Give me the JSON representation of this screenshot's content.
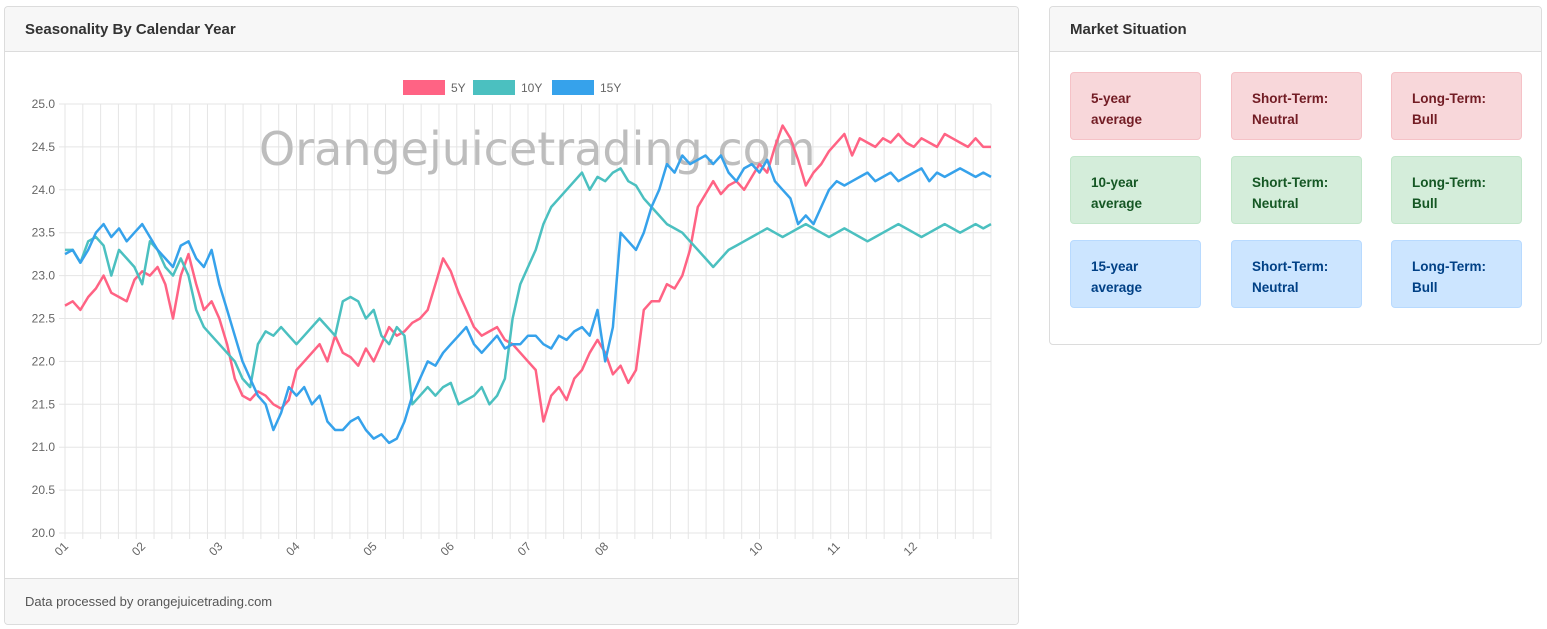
{
  "chart_panel": {
    "title": "Seasonality By Calendar Year",
    "footer": "Data processed by orangejuicetrading.com",
    "watermark": "Orangejuicetrading.com"
  },
  "market_panel": {
    "title": "Market Situation",
    "rows": [
      {
        "label": "5-year average",
        "short_term": "Short-Term: Neutral",
        "long_term": "Long-Term: Bull",
        "style": "red"
      },
      {
        "label": "10-year average",
        "short_term": "Short-Term: Neutral",
        "long_term": "Long-Term: Bull",
        "style": "green"
      },
      {
        "label": "15-year average",
        "short_term": "Short-Term: Neutral",
        "long_term": "Long-Term: Bull",
        "style": "blue"
      }
    ]
  },
  "colors": {
    "s5": "#ff6384",
    "s10": "#4bc0c0",
    "s15": "#36a2eb"
  },
  "chart_data": {
    "type": "line",
    "ylim": [
      20.0,
      25.0
    ],
    "y_ticks": [
      "25.0",
      "24.5",
      "24.0",
      "23.5",
      "23.0",
      "22.5",
      "22.0",
      "21.5",
      "21.0",
      "20.5",
      "20.0"
    ],
    "x_ticks": [
      {
        "label": "01",
        "x": 0
      },
      {
        "label": "02",
        "x": 1
      },
      {
        "label": "03",
        "x": 2
      },
      {
        "label": "04",
        "x": 3
      },
      {
        "label": "05",
        "x": 4
      },
      {
        "label": "06",
        "x": 5
      },
      {
        "label": "07",
        "x": 6
      },
      {
        "label": "08",
        "x": 7
      },
      {
        "label": "10",
        "x": 9
      },
      {
        "label": "11",
        "x": 10
      },
      {
        "label": "12",
        "x": 11
      }
    ],
    "x_range": [
      0,
      12
    ],
    "grid": true,
    "legend_position": "top",
    "series": [
      {
        "name": "5Y",
        "color": "#ff6384",
        "x": [
          0,
          0.1,
          0.2,
          0.3,
          0.4,
          0.5,
          0.6,
          0.7,
          0.8,
          0.9,
          1.0,
          1.1,
          1.2,
          1.3,
          1.4,
          1.5,
          1.6,
          1.7,
          1.8,
          1.9,
          2.0,
          2.1,
          2.2,
          2.3,
          2.4,
          2.5,
          2.6,
          2.7,
          2.8,
          2.9,
          3.0,
          3.1,
          3.2,
          3.3,
          3.4,
          3.5,
          3.6,
          3.7,
          3.8,
          3.9,
          4.0,
          4.1,
          4.2,
          4.3,
          4.4,
          4.5,
          4.6,
          4.7,
          4.8,
          4.9,
          5.0,
          5.1,
          5.2,
          5.3,
          5.4,
          5.5,
          5.6,
          5.7,
          5.8,
          5.9,
          6.0,
          6.1,
          6.2,
          6.3,
          6.4,
          6.5,
          6.6,
          6.7,
          6.8,
          6.9,
          7.0,
          7.1,
          7.2,
          7.3,
          7.4,
          7.5,
          7.6,
          7.7,
          7.8,
          7.9,
          8.0,
          8.1,
          8.2,
          8.3,
          8.4,
          8.5,
          8.6,
          8.7,
          8.8,
          8.9,
          9.0,
          9.1,
          9.2,
          9.3,
          9.4,
          9.5,
          9.6,
          9.7,
          9.8,
          9.9,
          10.0,
          10.1,
          10.2,
          10.3,
          10.4,
          10.5,
          10.6,
          10.7,
          10.8,
          10.9,
          11.0,
          11.1,
          11.2,
          11.3,
          11.4,
          11.5,
          11.6,
          11.7,
          11.8,
          11.9,
          12.0
        ],
        "y": [
          22.65,
          22.7,
          22.6,
          22.75,
          22.85,
          23.0,
          22.8,
          22.75,
          22.7,
          22.95,
          23.05,
          23.0,
          23.1,
          22.9,
          22.5,
          23.0,
          23.25,
          22.9,
          22.6,
          22.7,
          22.5,
          22.2,
          21.8,
          21.6,
          21.55,
          21.65,
          21.6,
          21.5,
          21.45,
          21.55,
          21.9,
          22.0,
          22.1,
          22.2,
          22.0,
          22.3,
          22.1,
          22.05,
          21.95,
          22.15,
          22.0,
          22.2,
          22.4,
          22.3,
          22.35,
          22.45,
          22.5,
          22.6,
          22.9,
          23.2,
          23.05,
          22.8,
          22.6,
          22.4,
          22.3,
          22.35,
          22.4,
          22.25,
          22.2,
          22.1,
          22.0,
          21.9,
          21.3,
          21.6,
          21.7,
          21.55,
          21.8,
          21.9,
          22.1,
          22.25,
          22.1,
          21.85,
          21.95,
          21.75,
          21.9,
          22.6,
          22.7,
          22.7,
          22.9,
          22.85,
          23.0,
          23.3,
          23.8,
          23.95,
          24.1,
          23.95,
          24.05,
          24.1,
          24.0,
          24.15,
          24.3,
          24.2,
          24.5,
          24.75,
          24.6,
          24.35,
          24.05,
          24.2,
          24.3,
          24.45,
          24.55,
          24.65,
          24.4,
          24.6,
          24.55,
          24.5,
          24.6,
          24.55,
          24.65,
          24.55,
          24.5,
          24.6,
          24.55,
          24.5,
          24.65,
          24.6,
          24.55,
          24.5,
          24.6,
          24.5,
          24.5
        ],
        "values_note": ""
      },
      {
        "name": "10Y",
        "color": "#4bc0c0",
        "x": [
          0,
          0.1,
          0.2,
          0.3,
          0.4,
          0.5,
          0.6,
          0.7,
          0.8,
          0.9,
          1.0,
          1.1,
          1.2,
          1.3,
          1.4,
          1.5,
          1.6,
          1.7,
          1.8,
          1.9,
          2.0,
          2.1,
          2.2,
          2.3,
          2.4,
          2.5,
          2.6,
          2.7,
          2.8,
          2.9,
          3.0,
          3.1,
          3.2,
          3.3,
          3.4,
          3.5,
          3.6,
          3.7,
          3.8,
          3.9,
          4.0,
          4.1,
          4.2,
          4.3,
          4.4,
          4.5,
          4.6,
          4.7,
          4.8,
          4.9,
          5.0,
          5.1,
          5.2,
          5.3,
          5.4,
          5.5,
          5.6,
          5.7,
          5.8,
          5.9,
          6.0,
          6.1,
          6.2,
          6.3,
          6.4,
          6.5,
          6.6,
          6.7,
          6.8,
          6.9,
          7.0,
          7.1,
          7.2,
          7.3,
          7.4,
          7.5,
          7.6,
          7.7,
          7.8,
          7.9,
          8.0,
          8.1,
          8.2,
          8.3,
          8.4,
          8.5,
          8.6,
          8.7,
          8.8,
          8.9,
          9.0,
          9.1,
          9.2,
          9.3,
          9.4,
          9.5,
          9.6,
          9.7,
          9.8,
          9.9,
          10.0,
          10.1,
          10.2,
          10.3,
          10.4,
          10.5,
          10.6,
          10.7,
          10.8,
          10.9,
          11.0,
          11.1,
          11.2,
          11.3,
          11.4,
          11.5,
          11.6,
          11.7,
          11.8,
          11.9,
          12.0
        ],
        "y": [
          23.3,
          23.3,
          23.15,
          23.4,
          23.45,
          23.35,
          23.0,
          23.3,
          23.2,
          23.1,
          22.9,
          23.4,
          23.3,
          23.1,
          23.0,
          23.2,
          23.0,
          22.6,
          22.4,
          22.3,
          22.2,
          22.1,
          22.0,
          21.8,
          21.7,
          22.2,
          22.35,
          22.3,
          22.4,
          22.3,
          22.2,
          22.3,
          22.4,
          22.5,
          22.4,
          22.3,
          22.7,
          22.75,
          22.7,
          22.5,
          22.6,
          22.3,
          22.2,
          22.4,
          22.3,
          21.5,
          21.6,
          21.7,
          21.6,
          21.7,
          21.75,
          21.5,
          21.55,
          21.6,
          21.7,
          21.5,
          21.6,
          21.8,
          22.5,
          22.9,
          23.1,
          23.3,
          23.6,
          23.8,
          23.9,
          24.0,
          24.1,
          24.2,
          24.0,
          24.15,
          24.1,
          24.2,
          24.25,
          24.1,
          24.05,
          23.9,
          23.8,
          23.7,
          23.6,
          23.55,
          23.5,
          23.4,
          23.3,
          23.2,
          23.1,
          23.2,
          23.3,
          23.35,
          23.4,
          23.45,
          23.5,
          23.55,
          23.5,
          23.45,
          23.5,
          23.55,
          23.6,
          23.55,
          23.5,
          23.45,
          23.5,
          23.55,
          23.5,
          23.45,
          23.4,
          23.45,
          23.5,
          23.55,
          23.6,
          23.55,
          23.5,
          23.45,
          23.5,
          23.55,
          23.6,
          23.55,
          23.5,
          23.55,
          23.6,
          23.55,
          23.6
        ],
        "values_note": ""
      },
      {
        "name": "15Y",
        "color": "#36a2eb",
        "x": [
          0,
          0.1,
          0.2,
          0.3,
          0.4,
          0.5,
          0.6,
          0.7,
          0.8,
          0.9,
          1.0,
          1.1,
          1.2,
          1.3,
          1.4,
          1.5,
          1.6,
          1.7,
          1.8,
          1.9,
          2.0,
          2.1,
          2.2,
          2.3,
          2.4,
          2.5,
          2.6,
          2.7,
          2.8,
          2.9,
          3.0,
          3.1,
          3.2,
          3.3,
          3.4,
          3.5,
          3.6,
          3.7,
          3.8,
          3.9,
          4.0,
          4.1,
          4.2,
          4.3,
          4.4,
          4.5,
          4.6,
          4.7,
          4.8,
          4.9,
          5.0,
          5.1,
          5.2,
          5.3,
          5.4,
          5.5,
          5.6,
          5.7,
          5.8,
          5.9,
          6.0,
          6.1,
          6.2,
          6.3,
          6.4,
          6.5,
          6.6,
          6.7,
          6.8,
          6.9,
          7.0,
          7.1,
          7.2,
          7.3,
          7.4,
          7.5,
          7.6,
          7.7,
          7.8,
          7.9,
          8.0,
          8.1,
          8.2,
          8.3,
          8.4,
          8.5,
          8.6,
          8.7,
          8.8,
          8.9,
          9.0,
          9.1,
          9.2,
          9.3,
          9.4,
          9.5,
          9.6,
          9.7,
          9.8,
          9.9,
          10.0,
          10.1,
          10.2,
          10.3,
          10.4,
          10.5,
          10.6,
          10.7,
          10.8,
          10.9,
          11.0,
          11.1,
          11.2,
          11.3,
          11.4,
          11.5,
          11.6,
          11.7,
          11.8,
          11.9,
          12.0
        ],
        "y": [
          23.25,
          23.3,
          23.15,
          23.3,
          23.5,
          23.6,
          23.45,
          23.55,
          23.4,
          23.5,
          23.6,
          23.45,
          23.3,
          23.2,
          23.1,
          23.35,
          23.4,
          23.2,
          23.1,
          23.3,
          22.9,
          22.6,
          22.3,
          22.0,
          21.8,
          21.6,
          21.5,
          21.2,
          21.4,
          21.7,
          21.6,
          21.7,
          21.5,
          21.6,
          21.3,
          21.2,
          21.2,
          21.3,
          21.35,
          21.2,
          21.1,
          21.15,
          21.05,
          21.1,
          21.3,
          21.6,
          21.8,
          22.0,
          21.95,
          22.1,
          22.2,
          22.3,
          22.4,
          22.2,
          22.1,
          22.2,
          22.3,
          22.15,
          22.2,
          22.2,
          22.3,
          22.3,
          22.2,
          22.15,
          22.3,
          22.25,
          22.35,
          22.4,
          22.3,
          22.6,
          22.0,
          22.4,
          23.5,
          23.4,
          23.3,
          23.5,
          23.8,
          24.0,
          24.3,
          24.2,
          24.4,
          24.3,
          24.35,
          24.4,
          24.3,
          24.4,
          24.2,
          24.1,
          24.25,
          24.3,
          24.2,
          24.35,
          24.1,
          24.0,
          23.9,
          23.6,
          23.7,
          23.6,
          23.8,
          24.0,
          24.1,
          24.05,
          24.1,
          24.15,
          24.2,
          24.1,
          24.15,
          24.2,
          24.1,
          24.15,
          24.2,
          24.25,
          24.1,
          24.2,
          24.15,
          24.2,
          24.25,
          24.2,
          24.15,
          24.2,
          24.15
        ],
        "values_note": ""
      }
    ]
  }
}
